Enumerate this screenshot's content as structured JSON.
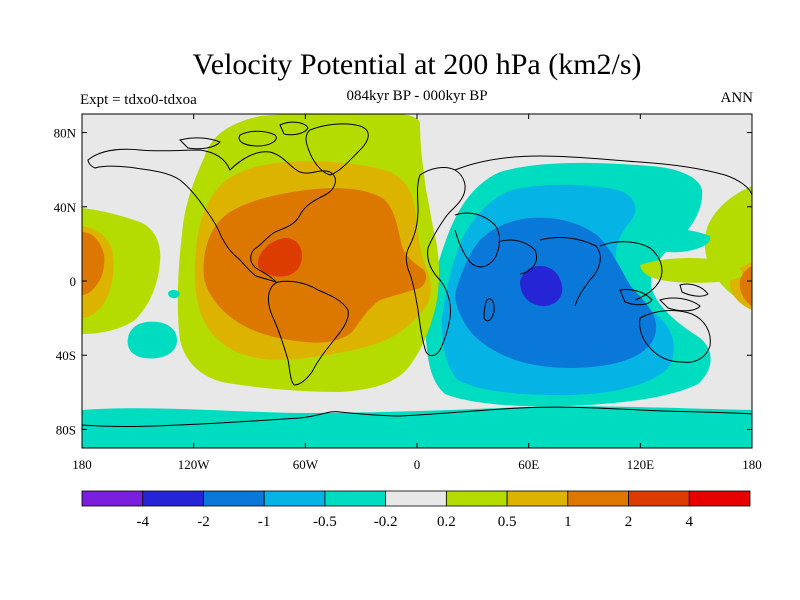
{
  "header": {
    "title": "Velocity Potential at 200 hPa (km2/s)",
    "subtitle": "084kyr BP - 000kyr BP",
    "left_label": "Expt = tdxo0-tdxoa",
    "right_label": "ANN"
  },
  "map": {
    "projection": "cylindrical-equidistant",
    "lon_range": [
      -180,
      180
    ],
    "lat_range": [
      -90,
      90
    ],
    "x_ticks": [
      {
        "lon": -180,
        "label": "180"
      },
      {
        "lon": -120,
        "label": "120W"
      },
      {
        "lon": -60,
        "label": "60W"
      },
      {
        "lon": 0,
        "label": "0"
      },
      {
        "lon": 60,
        "label": "60E"
      },
      {
        "lon": 120,
        "label": "120E"
      },
      {
        "lon": 180,
        "label": "180"
      }
    ],
    "y_ticks": [
      {
        "lat": 80,
        "label": "80N"
      },
      {
        "lat": 40,
        "label": "40N"
      },
      {
        "lat": 0,
        "label": "0"
      },
      {
        "lat": -40,
        "label": "40S"
      },
      {
        "lat": -80,
        "label": "80S"
      }
    ]
  },
  "colorbar": {
    "colors": [
      "#7a1fdb",
      "#2525d6",
      "#0a78d8",
      "#05b4e4",
      "#00dcc0",
      "#e8e8e8",
      "#b4dc00",
      "#dcb400",
      "#dc7800",
      "#dc3c00",
      "#e60000"
    ],
    "labels": [
      "-4",
      "-2",
      "-1",
      "-0.5",
      "-0.2",
      "0.2",
      "0.5",
      "1",
      "2",
      "4"
    ]
  },
  "colors": {
    "coastline": "#000000",
    "neutral": "#e8e8e8"
  }
}
